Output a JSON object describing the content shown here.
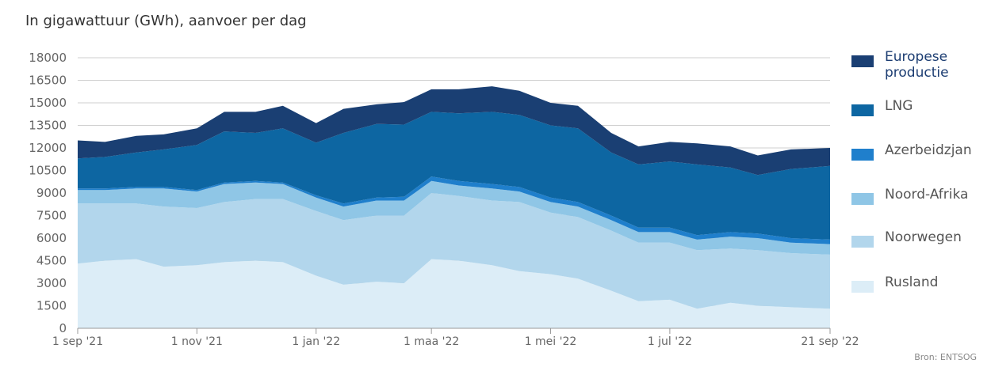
{
  "subtitle": "In gigawattuur (GWh), aanvoer per dag",
  "source": "Bron: ENTSOG",
  "chart_data": {
    "type": "area",
    "stacked": true,
    "title": "",
    "xlabel": "",
    "ylabel": "In gigawattuur (GWh), aanvoer per dag",
    "x": [
      "2021-09-01",
      "2021-09-15",
      "2021-10-01",
      "2021-10-15",
      "2021-11-01",
      "2021-11-15",
      "2021-12-01",
      "2021-12-15",
      "2022-01-01",
      "2022-01-15",
      "2022-02-01",
      "2022-02-15",
      "2022-03-01",
      "2022-03-15",
      "2022-04-01",
      "2022-04-15",
      "2022-05-01",
      "2022-05-15",
      "2022-06-01",
      "2022-06-15",
      "2022-07-01",
      "2022-07-15",
      "2022-08-01",
      "2022-08-15",
      "2022-09-01",
      "2022-09-21"
    ],
    "x_ticks": [
      "1 sep '21",
      "1 nov '21",
      "1 jan '22",
      "1 maa '22",
      "1 mei '22",
      "1 jul '22",
      "21 sep '22"
    ],
    "ylim": [
      0,
      18000
    ],
    "y_ticks": [
      "0",
      "1500",
      "3000",
      "4500",
      "6000",
      "7500",
      "9000",
      "10500",
      "12000",
      "13500",
      "15000",
      "16500",
      "18000"
    ],
    "grid": true,
    "legend_position": "right",
    "series": [
      {
        "name": "Rusland",
        "color": "#dcedf7",
        "values": [
          4300,
          4500,
          4600,
          4100,
          4200,
          4400,
          4500,
          4400,
          3500,
          2900,
          3100,
          3000,
          4600,
          4500,
          4200,
          3800,
          3600,
          3300,
          2500,
          1800,
          1900,
          1300,
          1700,
          1500,
          1400,
          1300
        ]
      },
      {
        "name": "Noorwegen",
        "color": "#b2d6ec",
        "values": [
          4000,
          3800,
          3700,
          4000,
          3800,
          4000,
          4100,
          4200,
          4300,
          4300,
          4400,
          4500,
          4400,
          4300,
          4300,
          4600,
          4100,
          4100,
          4000,
          3900,
          3800,
          3900,
          3600,
          3700,
          3600,
          3600
        ]
      },
      {
        "name": "Noord-Afrika",
        "color": "#8fc6e6",
        "values": [
          900,
          900,
          1000,
          1200,
          1100,
          1200,
          1100,
          1000,
          900,
          900,
          1000,
          1000,
          800,
          700,
          800,
          700,
          700,
          700,
          700,
          700,
          700,
          700,
          800,
          800,
          700,
          700
        ]
      },
      {
        "name": "Azerbeidzjan",
        "color": "#1f7fcc",
        "values": [
          100,
          100,
          100,
          100,
          100,
          100,
          100,
          100,
          150,
          200,
          200,
          250,
          300,
          300,
          300,
          300,
          300,
          300,
          300,
          300,
          300,
          300,
          300,
          300,
          300,
          300
        ]
      },
      {
        "name": "LNG",
        "color": "#0d66a2",
        "values": [
          2000,
          2100,
          2300,
          2500,
          3000,
          3400,
          3200,
          3600,
          3500,
          4700,
          4900,
          4800,
          4300,
          4500,
          4800,
          4800,
          4800,
          4900,
          4200,
          4200,
          4400,
          4700,
          4300,
          3900,
          4600,
          4900
        ]
      },
      {
        "name": "Europese productie",
        "color": "#1a3f73",
        "values": [
          1200,
          1000,
          1100,
          1000,
          1100,
          1300,
          1400,
          1500,
          1300,
          1600,
          1300,
          1500,
          1500,
          1600,
          1700,
          1600,
          1500,
          1500,
          1300,
          1200,
          1300,
          1400,
          1400,
          1300,
          1300,
          1200
        ]
      }
    ],
    "legend_order": [
      "Europese productie",
      "LNG",
      "Azerbeidzjan",
      "Noord-Afrika",
      "Noorwegen",
      "Rusland"
    ]
  }
}
